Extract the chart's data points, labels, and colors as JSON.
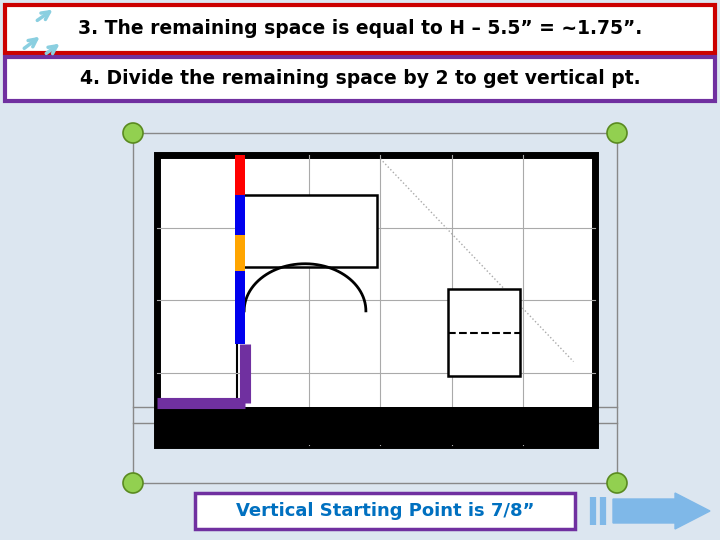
{
  "title1": "3. The remaining space is equal to H – 5.5” = ~1.75”.",
  "title2": "4. Divide the remaining space by 2 to get vertical pt.",
  "bottom_label": "Vertical Starting Point is 7/8”",
  "bg_color": "#dce6f0",
  "title1_border": "#cc0000",
  "title2_border": "#7030a0",
  "title1_bg": "#ffffff",
  "title2_bg": "#ffffff",
  "bottom_label_bg": "#ffffff",
  "bottom_label_border": "#7030a0",
  "bottom_label_text_color": "#0070c0",
  "arrow_color": "#7fb8e8",
  "green_dot_color": "#92d050",
  "green_dot_edge": "#5a8a20",
  "inner_rect_thick_color": "#000000",
  "red_line_color": "#ff0000",
  "blue_line_color": "#0000ee",
  "orange_line_color": "#ffa500",
  "purple_line_color": "#7030a0",
  "gray_line_color": "#aaaaaa",
  "dashed_line_color": "#000000",
  "outer_thin_color": "#888888"
}
